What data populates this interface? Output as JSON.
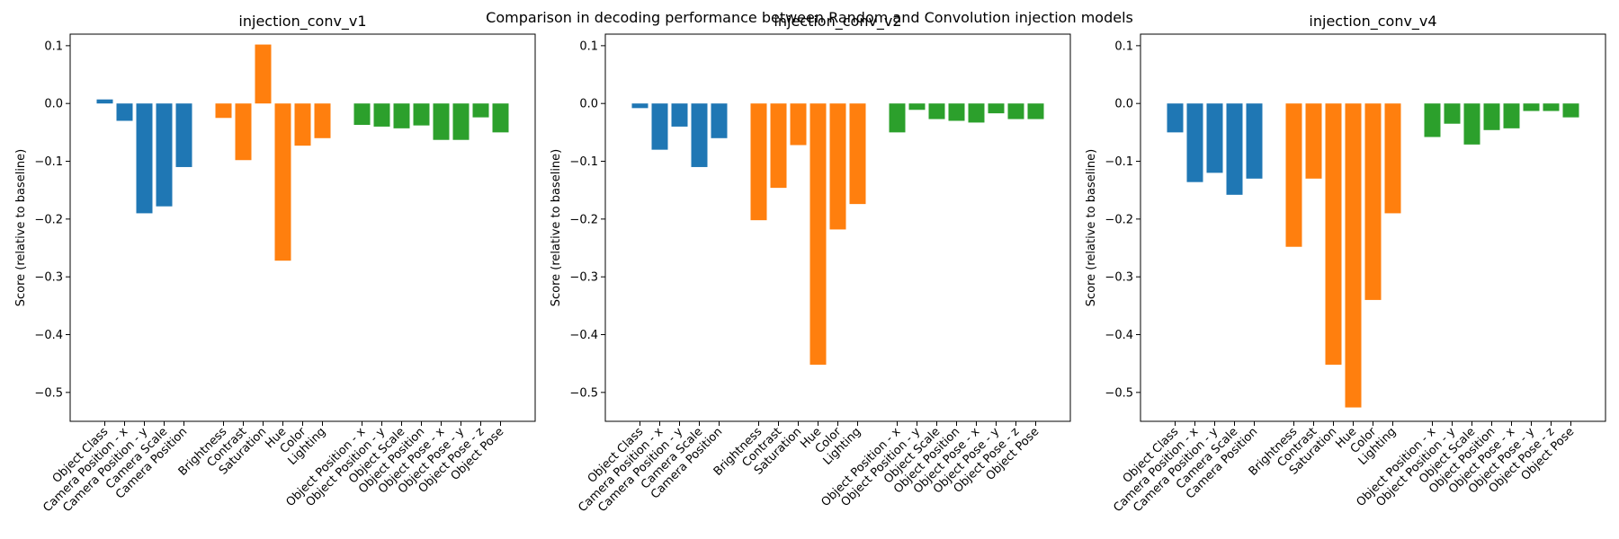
{
  "figure": {
    "suptitle": "Comparison in decoding performance between Random and Convolution injection models"
  },
  "colors": {
    "camera": "#1f77b4",
    "appearance": "#ff7f0e",
    "object": "#2ca02c"
  },
  "chart_data": [
    {
      "type": "bar",
      "title": "injection_conv_v1",
      "ylabel": "Score (relative to baseline)",
      "ylim": [
        -0.55,
        0.12
      ],
      "yticks": [
        "0.1",
        "0.0",
        "−0.1",
        "−0.2",
        "−0.3",
        "−0.4",
        "−0.5"
      ],
      "groups": [
        {
          "color_key": "camera",
          "categories": [
            "Object Class",
            "Camera Position - x",
            "Camera Position - y",
            "Camera Scale",
            "Camera Position"
          ],
          "values": [
            0.007,
            -0.03,
            -0.19,
            -0.178,
            -0.11
          ]
        },
        {
          "color_key": "appearance",
          "categories": [
            "Brightness",
            "Contrast",
            "Saturation",
            "Hue",
            "Color",
            "Lighting"
          ],
          "values": [
            -0.025,
            -0.098,
            0.102,
            -0.272,
            -0.073,
            -0.06
          ]
        },
        {
          "color_key": "object",
          "categories": [
            "Object Position - x",
            "Object Position - y",
            "Object Scale",
            "Object Position",
            "Object Pose - x",
            "Object Pose - y",
            "Object Pose - z",
            "Object Pose"
          ],
          "values": [
            -0.037,
            -0.04,
            -0.043,
            -0.038,
            -0.063,
            -0.063,
            -0.024,
            -0.05
          ]
        }
      ]
    },
    {
      "type": "bar",
      "title": "injection_conv_v2",
      "ylabel": "Score (relative to baseline)",
      "ylim": [
        -0.55,
        0.12
      ],
      "yticks": [
        "0.1",
        "0.0",
        "−0.1",
        "−0.2",
        "−0.3",
        "−0.4",
        "−0.5"
      ],
      "groups": [
        {
          "color_key": "camera",
          "categories": [
            "Object Class",
            "Camera Position - x",
            "Camera Position - y",
            "Camera Scale",
            "Camera Position"
          ],
          "values": [
            -0.008,
            -0.08,
            -0.04,
            -0.11,
            -0.06
          ]
        },
        {
          "color_key": "appearance",
          "categories": [
            "Brightness",
            "Contrast",
            "Saturation",
            "Hue",
            "Color",
            "Lighting"
          ],
          "values": [
            -0.202,
            -0.146,
            -0.072,
            -0.452,
            -0.218,
            -0.174
          ]
        },
        {
          "color_key": "object",
          "categories": [
            "Object Position - x",
            "Object Position - y",
            "Object Scale",
            "Object Position",
            "Object Pose - x",
            "Object Pose - y",
            "Object Pose - z",
            "Object Pose"
          ],
          "values": [
            -0.05,
            -0.011,
            -0.027,
            -0.03,
            -0.033,
            -0.017,
            -0.027,
            -0.027
          ]
        }
      ]
    },
    {
      "type": "bar",
      "title": "injection_conv_v4",
      "ylabel": "Score (relative to baseline)",
      "ylim": [
        -0.55,
        0.12
      ],
      "yticks": [
        "0.1",
        "0.0",
        "−0.1",
        "−0.2",
        "−0.3",
        "−0.4",
        "−0.5"
      ],
      "groups": [
        {
          "color_key": "camera",
          "categories": [
            "Object Class",
            "Camera Position - x",
            "Camera Position - y",
            "Camera Scale",
            "Camera Position"
          ],
          "values": [
            -0.05,
            -0.136,
            -0.12,
            -0.158,
            -0.13
          ]
        },
        {
          "color_key": "appearance",
          "categories": [
            "Brightness",
            "Contrast",
            "Saturation",
            "Hue",
            "Color",
            "Lighting"
          ],
          "values": [
            -0.248,
            -0.13,
            -0.452,
            -0.526,
            -0.34,
            -0.19
          ]
        },
        {
          "color_key": "object",
          "categories": [
            "Object Position - x",
            "Object Position - y",
            "Object Scale",
            "Object Position",
            "Object Pose - x",
            "Object Pose - y",
            "Object Pose - z",
            "Object Pose"
          ],
          "values": [
            -0.058,
            -0.035,
            -0.071,
            -0.046,
            -0.043,
            -0.013,
            -0.013,
            -0.024
          ]
        }
      ]
    }
  ]
}
